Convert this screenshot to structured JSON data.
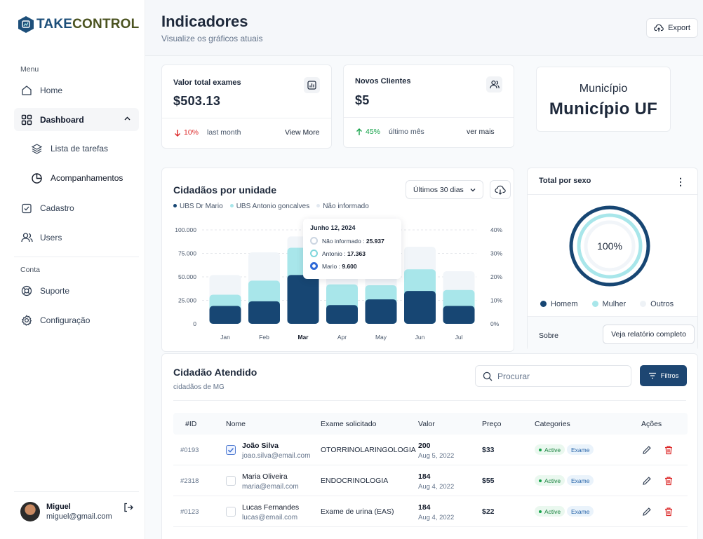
{
  "brand": {
    "logo_part1": "TAKE",
    "logo_part2": "CONTROL"
  },
  "sidebar": {
    "section_menu": "Menu",
    "section_account": "Conta",
    "items": {
      "home": "Home",
      "dashboard": "Dashboard",
      "tasks": "Lista de tarefas",
      "tracking": "Acompanhamentos",
      "register": "Cadastro",
      "users": "Users",
      "support": "Suporte",
      "settings": "Configuração"
    },
    "user": {
      "name": "Miguel",
      "email": "miguel@gmail.com"
    }
  },
  "header": {
    "title": "Indicadores",
    "subtitle": "Visualize os gráficos atuais",
    "export_label": "Export"
  },
  "stats": {
    "exams": {
      "title": "Valor total exames",
      "value": "$503.13",
      "trend_value": "10%",
      "trend_label": "last month",
      "link": "View More"
    },
    "clients": {
      "title": "Novos Clientes",
      "value": "$5",
      "trend_value": "45%",
      "trend_label": "último mês",
      "link": "ver mais"
    },
    "municipio": {
      "title": "Município",
      "value": "Município UF"
    }
  },
  "colors": {
    "dark": "#174673",
    "light": "#a8e6ea",
    "pale": "#f1f5f9",
    "down": "#dc2626",
    "up": "#16a34a"
  },
  "chart": {
    "title": "Cidadãos por unidade",
    "range_label": "Últimos 30 dias",
    "tooltip": {
      "date": "Junho 12, 2024",
      "rows": [
        {
          "label": "Não informado :",
          "value": "25.937"
        },
        {
          "label": "Antonio :",
          "value": "17.363"
        },
        {
          "label": "Mario :",
          "value": "9.600"
        }
      ]
    }
  },
  "chart_data": {
    "type": "bar",
    "categories": [
      "Jan",
      "Feb",
      "Mar",
      "Apr",
      "May",
      "Jun",
      "Jul"
    ],
    "highlight": "Mar",
    "series": [
      {
        "name": "UBS Dr Mario",
        "values": [
          19000,
          24000,
          52000,
          20000,
          26000,
          35000,
          19000
        ]
      },
      {
        "name": "UBS Antonio goncalves",
        "values": [
          12000,
          22000,
          29000,
          22000,
          15000,
          23000,
          17000
        ]
      },
      {
        "name": "Não informado",
        "values": [
          21000,
          30000,
          12000,
          22000,
          19000,
          24000,
          20000
        ]
      }
    ],
    "y_ticks": [
      "0",
      "25.000",
      "50.000",
      "75.000",
      "100.000"
    ],
    "y2_ticks": [
      "0%",
      "10%",
      "20%",
      "30%",
      "40%"
    ],
    "ylim": [
      0,
      100000
    ],
    "stacked": true,
    "legend": "top-left"
  },
  "sex": {
    "title": "Total por sexo",
    "center_label": "100%",
    "legend": [
      "Homem",
      "Mulher",
      "Outros"
    ],
    "ring_fraction": 1.0,
    "footer_label": "Sobre",
    "report_button": "Veja relatório completo"
  },
  "table": {
    "title": "Cidadão Atendido",
    "subtitle": "cidadãos de MG",
    "search_placeholder": "Procurar",
    "filter_label": "Filtros",
    "headers": [
      "#ID",
      "Nome",
      "Exame solicitado",
      "Valor",
      "Preço",
      "Categories",
      "Ações"
    ],
    "rows": [
      {
        "id": "#0193",
        "checked": true,
        "name": "João Silva",
        "email": "joao.silva@email.com",
        "exam": "OTORRINOLARINGOLOGIA",
        "value": "200",
        "date": "Aug 5, 2022",
        "price": "$33",
        "status": "Active",
        "category": "Exame"
      },
      {
        "id": "#2318",
        "checked": false,
        "name": "Maria Oliveira",
        "email": "maria@email.com",
        "exam": "ENDOCRINOLOGIA",
        "value": "184",
        "date": "Aug 4, 2022",
        "price": "$55",
        "status": "Active",
        "category": "Exame"
      },
      {
        "id": "#0123",
        "checked": false,
        "name": "Lucas Fernandes",
        "email": "lucas@email.com",
        "exam": "Exame de urina (EAS)",
        "value": "184",
        "date": "Aug 4, 2022",
        "price": "$22",
        "status": "Active",
        "category": "Exame"
      }
    ]
  }
}
